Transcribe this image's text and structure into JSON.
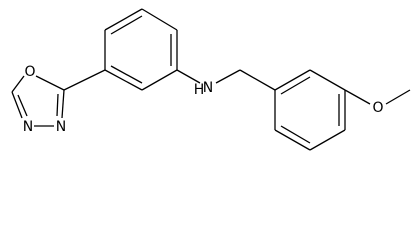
{
  "atoms": {
    "oxadiazole_o": "O",
    "oxadiazole_n3": "N",
    "oxadiazole_n4": "N",
    "amine_n": "N",
    "amine_h": "H",
    "methoxy_o": "O"
  }
}
